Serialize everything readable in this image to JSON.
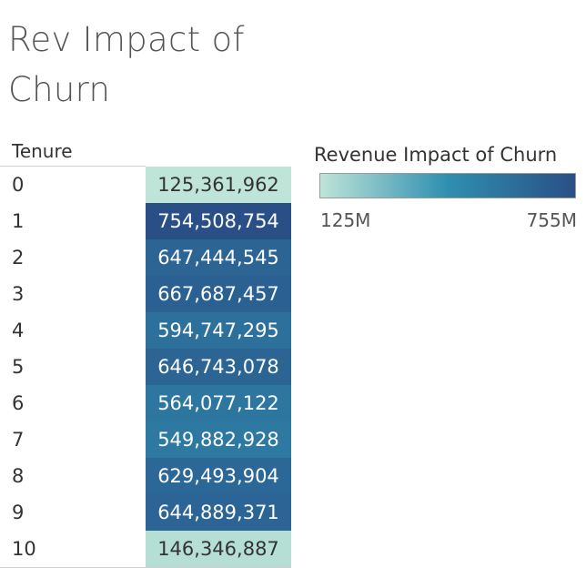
{
  "title": "Rev Impact of Churn",
  "chart_data": {
    "type": "heatmap",
    "title": "Rev Impact of Churn",
    "row_header": "Tenure",
    "categories": [
      "0",
      "1",
      "2",
      "3",
      "4",
      "5",
      "6",
      "7",
      "8",
      "9",
      "10"
    ],
    "values": [
      125361962,
      754508754,
      647444545,
      667687457,
      594747295,
      646743078,
      564077122,
      549882928,
      629493904,
      644889371,
      146346887
    ],
    "labels": [
      "125,361,962",
      "754,508,754",
      "647,444,545",
      "667,687,457",
      "594,747,295",
      "646,743,078",
      "564,077,122",
      "549,882,928",
      "629,493,904",
      "644,889,371",
      "146,346,887"
    ],
    "legend": {
      "title": "Revenue Impact of Churn",
      "min_label": "125M",
      "max_label": "755M",
      "min_value": 125361962,
      "max_value": 754508754,
      "placement": "top-right"
    },
    "colors": {
      "low": "#bfe4d8",
      "mid": "#2f8fb0",
      "high": "#2a4f86"
    }
  }
}
